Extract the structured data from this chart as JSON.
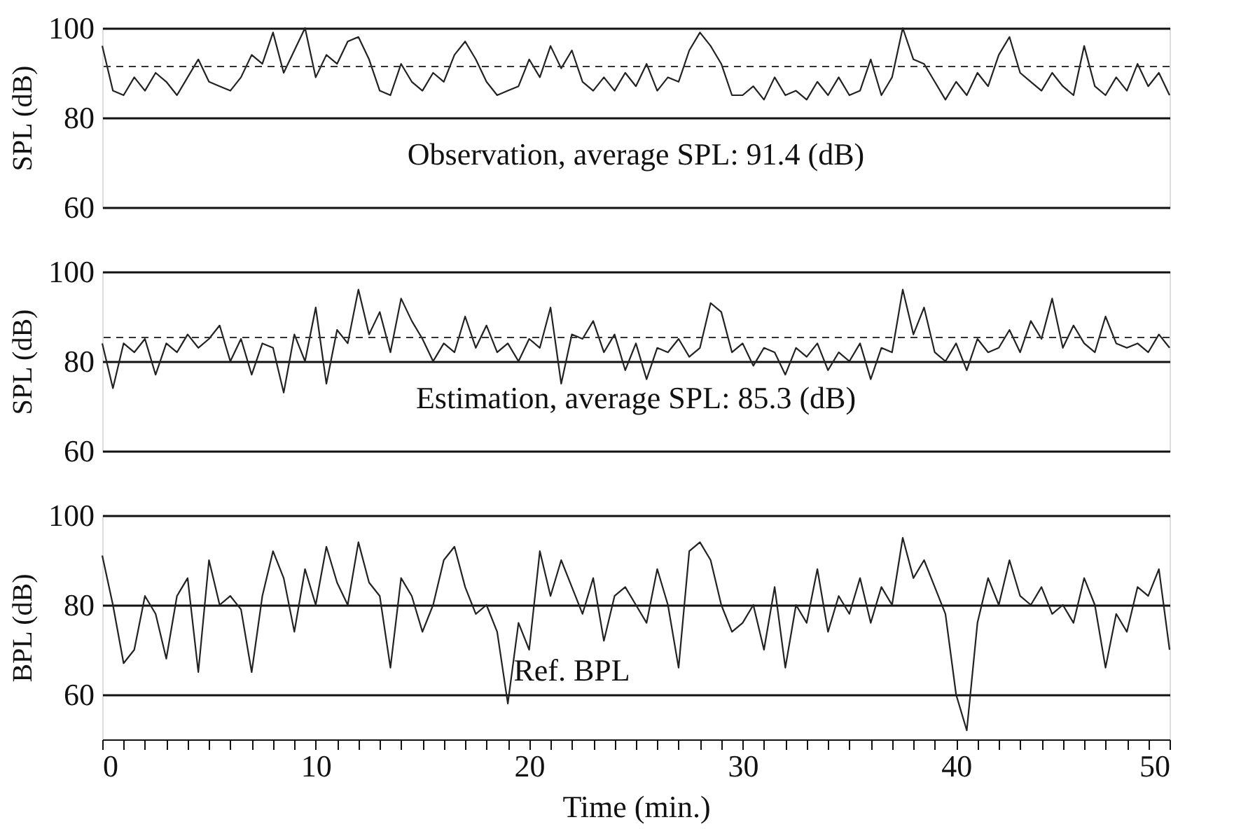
{
  "chart_data": [
    {
      "type": "line",
      "ylabel": "SPL (dB)",
      "color": "#222222",
      "xlim": [
        0,
        50
      ],
      "ylim": [
        60,
        100
      ],
      "yticks": [
        60,
        80,
        100
      ],
      "grid": "y",
      "tick_labels": "y",
      "line_style": "solid",
      "marker": "none",
      "x": [
        0,
        0.5,
        1,
        1.5,
        2,
        2.5,
        3,
        3.5,
        4,
        4.5,
        5,
        5.5,
        6,
        6.5,
        7,
        7.5,
        8,
        8.5,
        9,
        9.5,
        10,
        10.5,
        11,
        11.5,
        12,
        12.5,
        13,
        13.5,
        14,
        14.5,
        15,
        15.5,
        16,
        16.5,
        17,
        17.5,
        18,
        18.5,
        19,
        19.5,
        20,
        20.5,
        21,
        21.5,
        22,
        22.5,
        23,
        23.5,
        24,
        24.5,
        25,
        25.5,
        26,
        26.5,
        27,
        27.5,
        28,
        28.5,
        29,
        29.5,
        30,
        30.5,
        31,
        31.5,
        32,
        32.5,
        33,
        33.5,
        34,
        34.5,
        35,
        35.5,
        36,
        36.5,
        37,
        37.5,
        38,
        38.5,
        39,
        39.5,
        40,
        40.5,
        41,
        41.5,
        42,
        42.5,
        43,
        43.5,
        44,
        44.5,
        45,
        45.5,
        46,
        46.5,
        47,
        47.5,
        48,
        48.5,
        49,
        49.5,
        50
      ],
      "values": [
        96,
        86,
        85,
        89,
        86,
        90,
        88,
        85,
        89,
        93,
        88,
        87,
        86,
        89,
        94,
        92,
        99,
        90,
        95,
        100,
        89,
        94,
        92,
        97,
        98,
        93,
        86,
        85,
        92,
        88,
        86,
        90,
        88,
        94,
        97,
        93,
        88,
        85,
        86,
        87,
        93,
        89,
        96,
        91,
        95,
        88,
        86,
        89,
        86,
        90,
        87,
        92,
        86,
        89,
        88,
        95,
        99,
        96,
        92,
        85,
        85,
        87,
        84,
        89,
        85,
        86,
        84,
        88,
        85,
        89,
        85,
        86,
        93,
        85,
        89,
        100,
        93,
        92,
        88,
        84,
        88,
        85,
        90,
        87,
        94,
        98,
        90,
        88,
        86,
        90,
        87,
        85,
        96,
        87,
        85,
        89,
        86,
        92,
        87,
        90,
        85
      ],
      "ref_lines": [
        {
          "axis": "y",
          "value": 91.4,
          "line_style": "dashed"
        }
      ],
      "annotations": [
        "Observation, average SPL: 91.4 (dB)"
      ]
    },
    {
      "type": "line",
      "ylabel": "SPL (dB)",
      "color": "#222222",
      "xlim": [
        0,
        50
      ],
      "ylim": [
        60,
        100
      ],
      "yticks": [
        60,
        80,
        100
      ],
      "grid": "y",
      "tick_labels": "y",
      "line_style": "solid",
      "marker": "none",
      "x": [
        0,
        0.5,
        1,
        1.5,
        2,
        2.5,
        3,
        3.5,
        4,
        4.5,
        5,
        5.5,
        6,
        6.5,
        7,
        7.5,
        8,
        8.5,
        9,
        9.5,
        10,
        10.5,
        11,
        11.5,
        12,
        12.5,
        13,
        13.5,
        14,
        14.5,
        15,
        15.5,
        16,
        16.5,
        17,
        17.5,
        18,
        18.5,
        19,
        19.5,
        20,
        20.5,
        21,
        21.5,
        22,
        22.5,
        23,
        23.5,
        24,
        24.5,
        25,
        25.5,
        26,
        26.5,
        27,
        27.5,
        28,
        28.5,
        29,
        29.5,
        30,
        30.5,
        31,
        31.5,
        32,
        32.5,
        33,
        33.5,
        34,
        34.5,
        35,
        35.5,
        36,
        36.5,
        37,
        37.5,
        38,
        38.5,
        39,
        39.5,
        40,
        40.5,
        41,
        41.5,
        42,
        42.5,
        43,
        43.5,
        44,
        44.5,
        45,
        45.5,
        46,
        46.5,
        47,
        47.5,
        48,
        48.5,
        49,
        49.5,
        50
      ],
      "values": [
        84,
        74,
        84,
        82,
        85,
        77,
        84,
        82,
        86,
        83,
        85,
        88,
        80,
        85,
        77,
        84,
        83,
        73,
        86,
        80,
        92,
        75,
        87,
        84,
        96,
        86,
        91,
        82,
        94,
        89,
        85,
        80,
        84,
        82,
        90,
        83,
        88,
        82,
        84,
        80,
        85,
        83,
        92,
        75,
        86,
        85,
        89,
        82,
        86,
        78,
        84,
        76,
        83,
        82,
        85,
        81,
        83,
        93,
        91,
        82,
        84,
        79,
        83,
        82,
        77,
        83,
        81,
        84,
        78,
        82,
        80,
        84,
        76,
        83,
        82,
        96,
        86,
        92,
        82,
        80,
        84,
        78,
        85,
        82,
        83,
        87,
        82,
        89,
        85,
        94,
        83,
        88,
        84,
        82,
        90,
        84,
        83,
        84,
        82,
        86,
        83
      ],
      "ref_lines": [
        {
          "axis": "y",
          "value": 85.3,
          "line_style": "dashed"
        }
      ],
      "annotations": [
        "Estimation, average SPL: 85.3 (dB)"
      ]
    },
    {
      "type": "line",
      "ylabel": "BPL (dB)",
      "xlabel": "Time (min.)",
      "color": "#222222",
      "xlim": [
        0,
        50
      ],
      "ylim": [
        50,
        100
      ],
      "yticks": [
        60,
        80,
        100
      ],
      "grid": "y",
      "line_style": "solid",
      "marker": "none",
      "xticks": [
        0,
        {
          "value": 1,
          "label": null
        },
        {
          "value": 2,
          "label": null
        },
        {
          "value": 3,
          "label": null
        },
        {
          "value": 4,
          "label": null
        },
        {
          "value": 5,
          "label": null
        },
        {
          "value": 6,
          "label": null
        },
        {
          "value": 7,
          "label": null
        },
        {
          "value": 8,
          "label": null
        },
        {
          "value": 9,
          "label": null
        },
        10,
        {
          "value": 11,
          "label": null
        },
        {
          "value": 12,
          "label": null
        },
        {
          "value": 13,
          "label": null
        },
        {
          "value": 14,
          "label": null
        },
        {
          "value": 15,
          "label": null
        },
        {
          "value": 16,
          "label": null
        },
        {
          "value": 17,
          "label": null
        },
        {
          "value": 18,
          "label": null
        },
        {
          "value": 19,
          "label": null
        },
        20,
        {
          "value": 21,
          "label": null
        },
        {
          "value": 22,
          "label": null
        },
        {
          "value": 23,
          "label": null
        },
        {
          "value": 24,
          "label": null
        },
        {
          "value": 25,
          "label": null
        },
        {
          "value": 26,
          "label": null
        },
        {
          "value": 27,
          "label": null
        },
        {
          "value": 28,
          "label": null
        },
        {
          "value": 29,
          "label": null
        },
        30,
        {
          "value": 31,
          "label": null
        },
        {
          "value": 32,
          "label": null
        },
        {
          "value": 33,
          "label": null
        },
        {
          "value": 34,
          "label": null
        },
        {
          "value": 35,
          "label": null
        },
        {
          "value": 36,
          "label": null
        },
        {
          "value": 37,
          "label": null
        },
        {
          "value": 38,
          "label": null
        },
        {
          "value": 39,
          "label": null
        },
        40,
        {
          "value": 41,
          "label": null
        },
        {
          "value": 42,
          "label": null
        },
        {
          "value": 43,
          "label": null
        },
        {
          "value": 44,
          "label": null
        },
        {
          "value": 45,
          "label": null
        },
        {
          "value": 46,
          "label": null
        },
        {
          "value": 47,
          "label": null
        },
        {
          "value": 48,
          "label": null
        },
        {
          "value": 49,
          "label": null
        },
        50
      ],
      "x": [
        0,
        0.5,
        1,
        1.5,
        2,
        2.5,
        3,
        3.5,
        4,
        4.5,
        5,
        5.5,
        6,
        6.5,
        7,
        7.5,
        8,
        8.5,
        9,
        9.5,
        10,
        10.5,
        11,
        11.5,
        12,
        12.5,
        13,
        13.5,
        14,
        14.5,
        15,
        15.5,
        16,
        16.5,
        17,
        17.5,
        18,
        18.5,
        19,
        19.5,
        20,
        20.5,
        21,
        21.5,
        22,
        22.5,
        23,
        23.5,
        24,
        24.5,
        25,
        25.5,
        26,
        26.5,
        27,
        27.5,
        28,
        28.5,
        29,
        29.5,
        30,
        30.5,
        31,
        31.5,
        32,
        32.5,
        33,
        33.5,
        34,
        34.5,
        35,
        35.5,
        36,
        36.5,
        37,
        37.5,
        38,
        38.5,
        39,
        39.5,
        40,
        40.5,
        41,
        41.5,
        42,
        42.5,
        43,
        43.5,
        44,
        44.5,
        45,
        45.5,
        46,
        46.5,
        47,
        47.5,
        48,
        48.5,
        49,
        49.5,
        50
      ],
      "values": [
        91,
        80,
        67,
        70,
        82,
        78,
        68,
        82,
        86,
        65,
        90,
        80,
        82,
        79,
        65,
        82,
        92,
        86,
        74,
        88,
        80,
        93,
        85,
        80,
        94,
        85,
        82,
        66,
        86,
        82,
        74,
        80,
        90,
        93,
        84,
        78,
        80,
        74,
        58,
        76,
        70,
        92,
        82,
        90,
        84,
        78,
        86,
        72,
        82,
        84,
        80,
        76,
        88,
        80,
        66,
        92,
        94,
        90,
        80,
        74,
        76,
        80,
        70,
        84,
        66,
        80,
        76,
        88,
        74,
        82,
        78,
        86,
        76,
        84,
        80,
        95,
        86,
        90,
        84,
        78,
        60,
        52,
        76,
        86,
        80,
        90,
        82,
        80,
        84,
        78,
        80,
        76,
        86,
        80,
        66,
        78,
        74,
        84,
        82,
        88,
        70
      ],
      "annotations": [
        "Ref. BPL"
      ]
    }
  ]
}
